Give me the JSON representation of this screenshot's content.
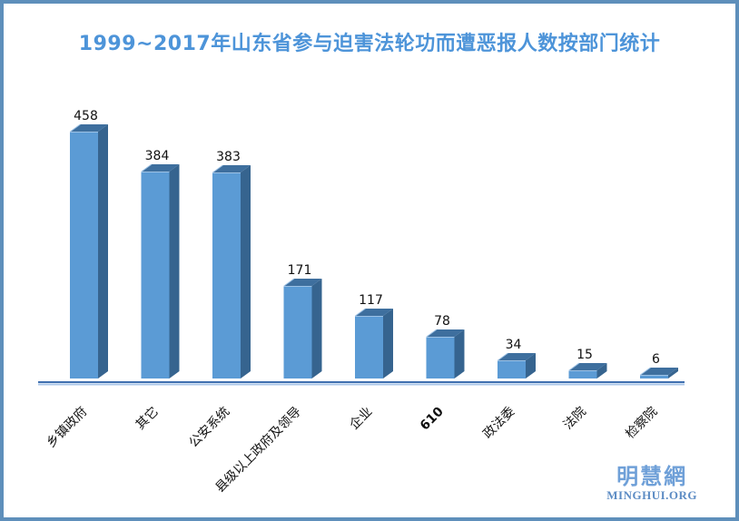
{
  "title": "1999~2017年山东省参与迫害法轮功而遭恶报人数按部门统计",
  "watermark": {
    "cn": "明慧網",
    "en": "MINGHUI.ORG"
  },
  "chart_data": {
    "type": "bar",
    "style": "3d-column",
    "title": "1999~2017年山东省参与迫害法轮功而遭恶报人数按部门统计",
    "categories": [
      "乡镇政府",
      "其它",
      "公安系统",
      "县级以上政府及领导",
      "企业",
      "610",
      "政法委",
      "法院",
      "检察院"
    ],
    "values": [
      458,
      384,
      383,
      171,
      117,
      78,
      34,
      15,
      6
    ],
    "bold_categories": [
      "610"
    ],
    "data_labels": true,
    "xlabel": "",
    "ylabel": "",
    "ylim": [
      0,
      480
    ],
    "gridlines": false,
    "legend": "none",
    "category_label_rotation_deg": -45,
    "colors": {
      "bar_front": "#5B9BD5",
      "bar_top": "#3E6F9E",
      "bar_side": "#36648F",
      "bar_edge_highlight": "#9DC2E5",
      "axis_line_dark": "#4070B0",
      "axis_line_light": "#AAC6E8",
      "title_color": "#4D94D9",
      "label_color": "#111111",
      "frame_border": "#5E8FBB",
      "watermark_cn_color": "#6FA0D8",
      "watermark_en_color": "#5D8CC4"
    }
  }
}
